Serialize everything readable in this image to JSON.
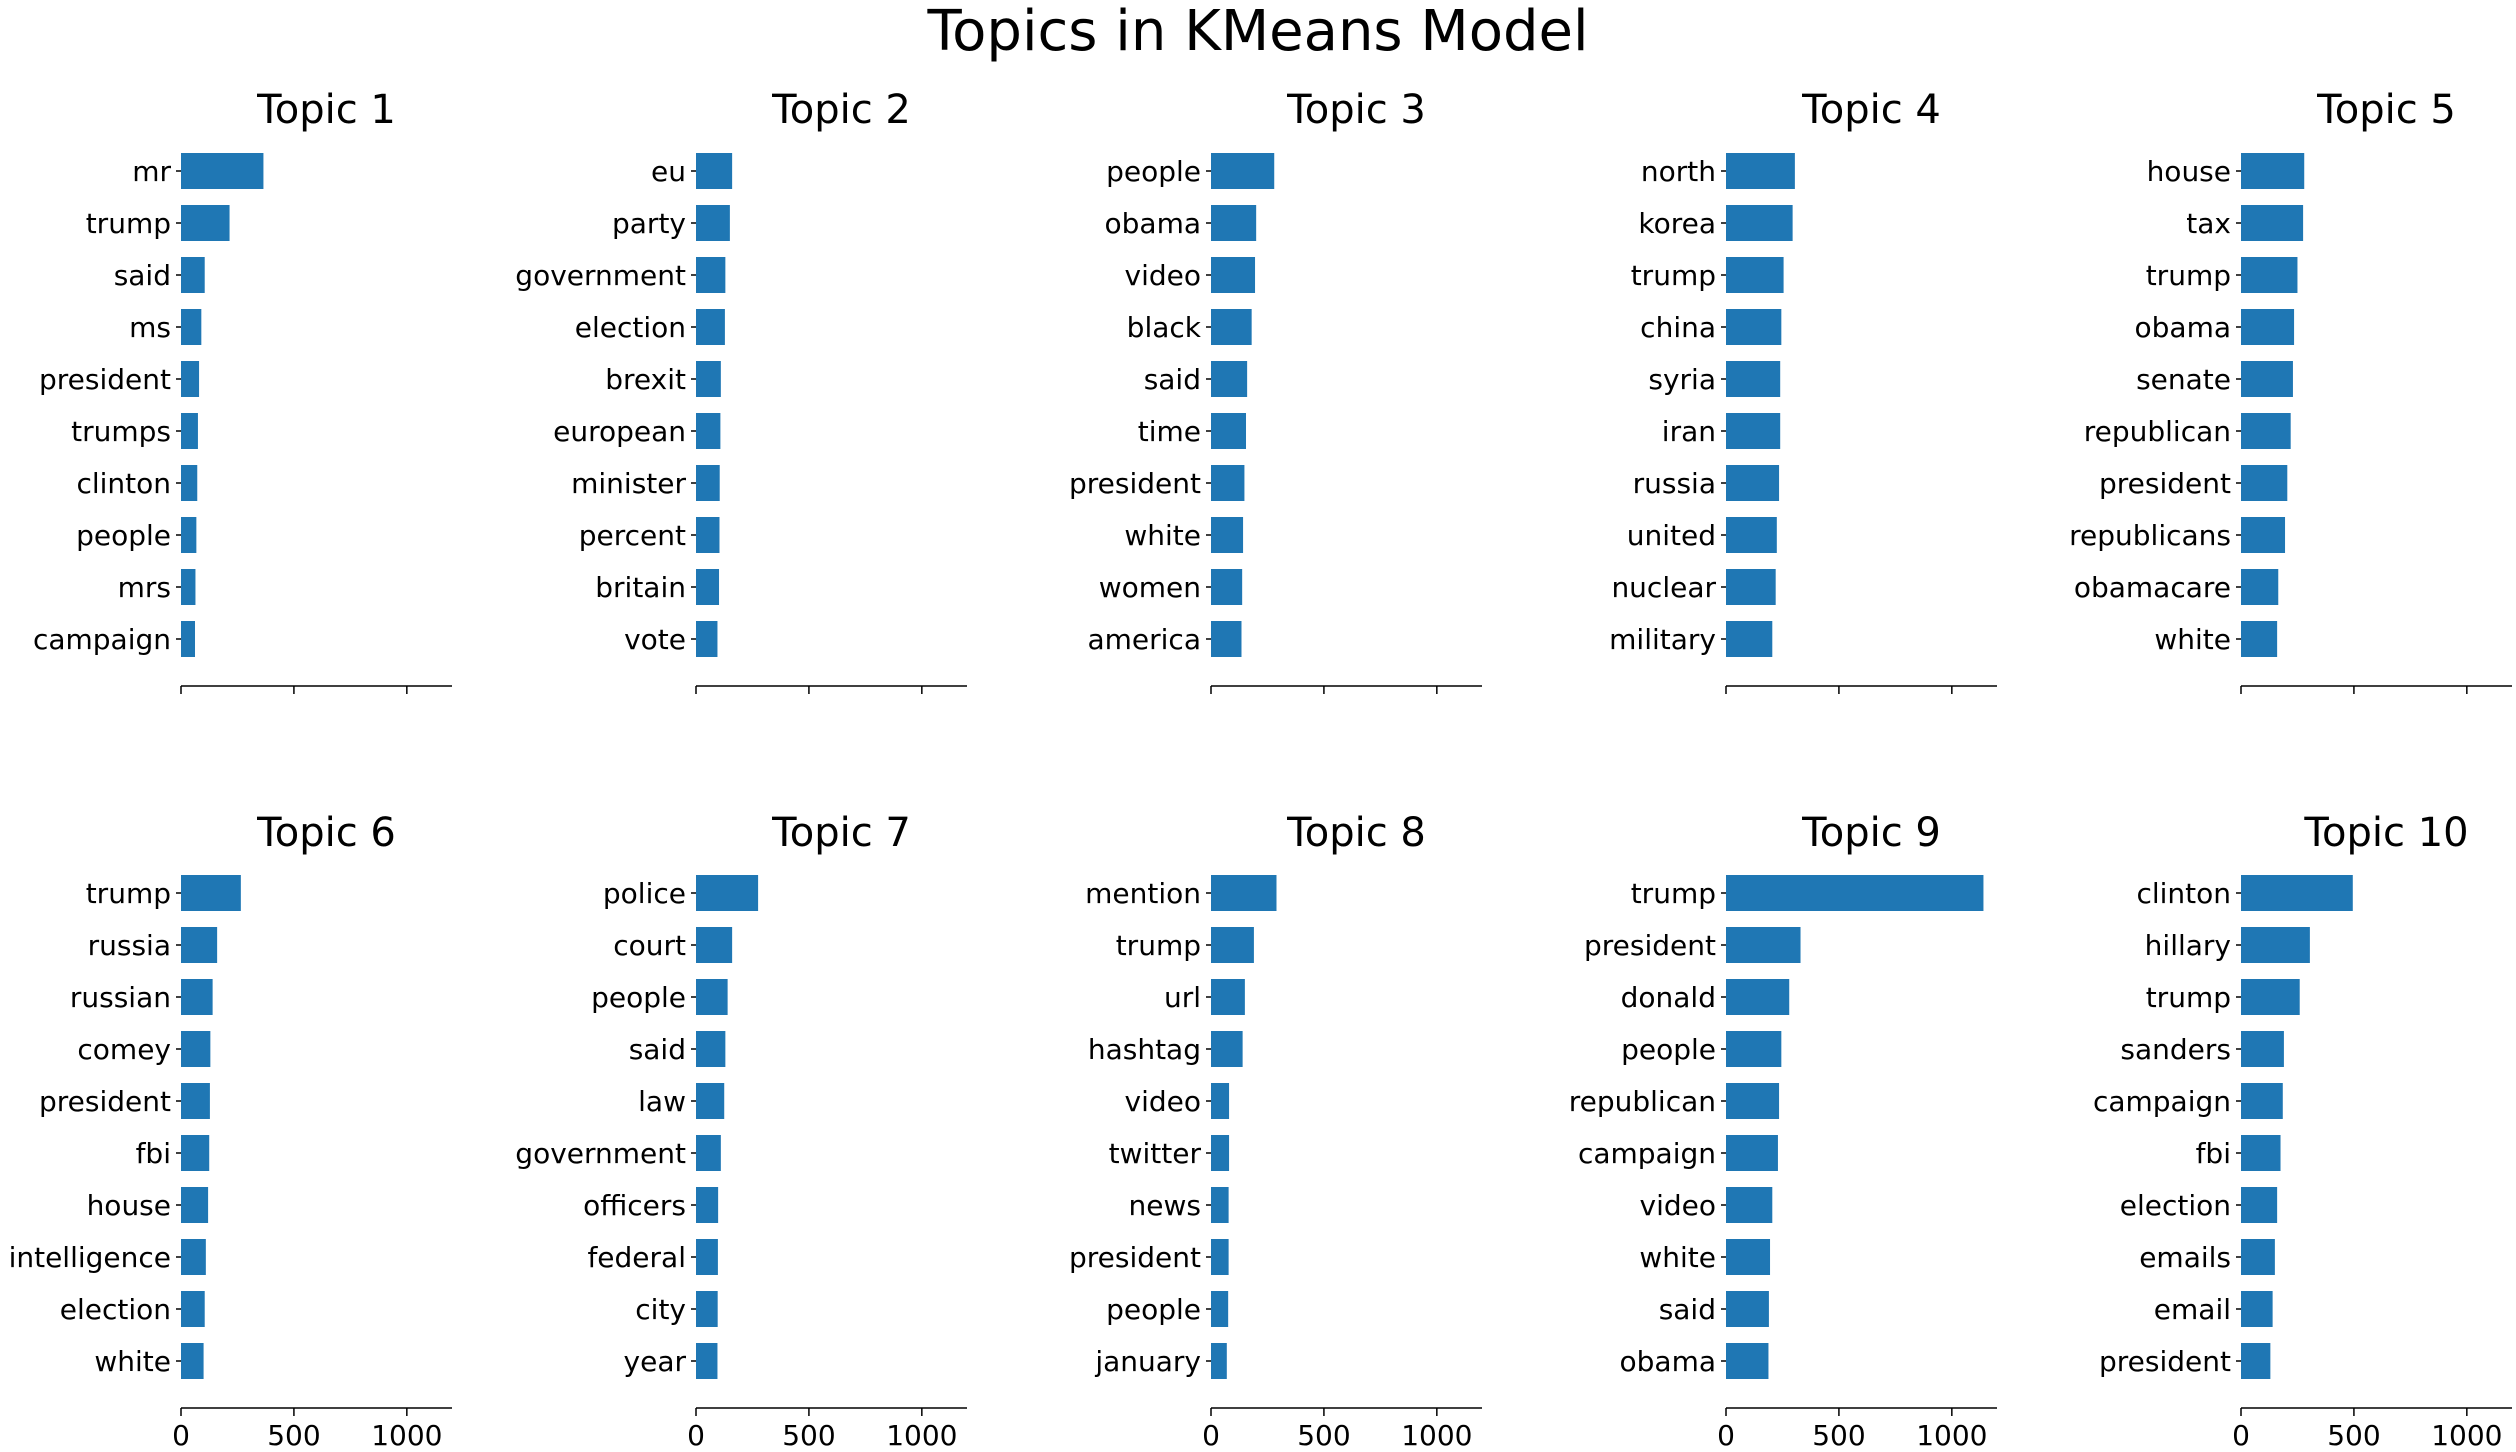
{
  "figure": {
    "title": "Topics in KMeans Model"
  },
  "chart_data": [
    {
      "type": "bar",
      "orientation": "horizontal",
      "title": "Topic 1",
      "categories": [
        "mr",
        "trump",
        "said",
        "ms",
        "president",
        "trumps",
        "clinton",
        "people",
        "mrs",
        "campaign"
      ],
      "values": [
        365,
        215,
        105,
        90,
        80,
        75,
        72,
        68,
        64,
        62
      ],
      "xlim": [
        0,
        1200
      ],
      "xticks": [
        "0",
        "500",
        "1000"
      ],
      "show_tick_labels": false,
      "color": "#1f77b4"
    },
    {
      "type": "bar",
      "orientation": "horizontal",
      "title": "Topic 2",
      "categories": [
        "eu",
        "party",
        "government",
        "election",
        "brexit",
        "european",
        "minister",
        "percent",
        "britain",
        "vote"
      ],
      "values": [
        160,
        150,
        130,
        128,
        110,
        108,
        105,
        104,
        102,
        95
      ],
      "xlim": [
        0,
        1200
      ],
      "xticks": [
        "0",
        "500",
        "1000"
      ],
      "show_tick_labels": false,
      "color": "#1f77b4"
    },
    {
      "type": "bar",
      "orientation": "horizontal",
      "title": "Topic 3",
      "categories": [
        "people",
        "obama",
        "video",
        "black",
        "said",
        "time",
        "president",
        "white",
        "women",
        "america"
      ],
      "values": [
        280,
        200,
        195,
        180,
        160,
        155,
        148,
        142,
        138,
        135
      ],
      "xlim": [
        0,
        1200
      ],
      "xticks": [
        "0",
        "500",
        "1000"
      ],
      "show_tick_labels": false,
      "color": "#1f77b4"
    },
    {
      "type": "bar",
      "orientation": "horizontal",
      "title": "Topic 4",
      "categories": [
        "north",
        "korea",
        "trump",
        "china",
        "syria",
        "iran",
        "russia",
        "united",
        "nuclear",
        "military"
      ],
      "values": [
        305,
        295,
        255,
        245,
        240,
        240,
        235,
        225,
        220,
        205
      ],
      "xlim": [
        0,
        1200
      ],
      "xticks": [
        "0",
        "500",
        "1000"
      ],
      "show_tick_labels": false,
      "color": "#1f77b4"
    },
    {
      "type": "bar",
      "orientation": "horizontal",
      "title": "Topic 5",
      "categories": [
        "house",
        "tax",
        "trump",
        "obama",
        "senate",
        "republican",
        "president",
        "republicans",
        "obamacare",
        "white"
      ],
      "values": [
        280,
        275,
        250,
        235,
        230,
        220,
        205,
        195,
        165,
        160
      ],
      "xlim": [
        0,
        1200
      ],
      "xticks": [
        "0",
        "500",
        "1000"
      ],
      "show_tick_labels": false,
      "color": "#1f77b4"
    },
    {
      "type": "bar",
      "orientation": "horizontal",
      "title": "Topic 6",
      "categories": [
        "trump",
        "russia",
        "russian",
        "comey",
        "president",
        "fbi",
        "house",
        "intelligence",
        "election",
        "white"
      ],
      "values": [
        265,
        160,
        140,
        130,
        128,
        125,
        120,
        110,
        105,
        100
      ],
      "xlim": [
        0,
        1200
      ],
      "xticks": [
        "0",
        "500",
        "1000"
      ],
      "show_tick_labels": true,
      "color": "#1f77b4"
    },
    {
      "type": "bar",
      "orientation": "horizontal",
      "title": "Topic 7",
      "categories": [
        "police",
        "court",
        "people",
        "said",
        "law",
        "government",
        "officers",
        "federal",
        "city",
        "year"
      ],
      "values": [
        275,
        160,
        140,
        130,
        125,
        110,
        98,
        97,
        96,
        95
      ],
      "xlim": [
        0,
        1200
      ],
      "xticks": [
        "0",
        "500",
        "1000"
      ],
      "show_tick_labels": true,
      "color": "#1f77b4"
    },
    {
      "type": "bar",
      "orientation": "horizontal",
      "title": "Topic 8",
      "categories": [
        "mention",
        "trump",
        "url",
        "hashtag",
        "video",
        "twitter",
        "news",
        "president",
        "people",
        "january"
      ],
      "values": [
        290,
        190,
        150,
        140,
        80,
        80,
        78,
        78,
        76,
        70
      ],
      "xlim": [
        0,
        1200
      ],
      "xticks": [
        "0",
        "500",
        "1000"
      ],
      "show_tick_labels": true,
      "color": "#1f77b4"
    },
    {
      "type": "bar",
      "orientation": "horizontal",
      "title": "Topic 9",
      "categories": [
        "trump",
        "president",
        "donald",
        "people",
        "republican",
        "campaign",
        "video",
        "white",
        "said",
        "obama"
      ],
      "values": [
        1140,
        330,
        280,
        245,
        235,
        230,
        205,
        195,
        190,
        188
      ],
      "xlim": [
        0,
        1200
      ],
      "xticks": [
        "0",
        "500",
        "1000"
      ],
      "show_tick_labels": true,
      "color": "#1f77b4"
    },
    {
      "type": "bar",
      "orientation": "horizontal",
      "title": "Topic 10",
      "categories": [
        "clinton",
        "hillary",
        "trump",
        "sanders",
        "campaign",
        "fbi",
        "election",
        "emails",
        "email",
        "president"
      ],
      "values": [
        495,
        305,
        260,
        190,
        185,
        175,
        160,
        150,
        140,
        130
      ],
      "xlim": [
        0,
        1200
      ],
      "xticks": [
        "0",
        "500",
        "1000"
      ],
      "show_tick_labels": true,
      "color": "#1f77b4"
    }
  ]
}
